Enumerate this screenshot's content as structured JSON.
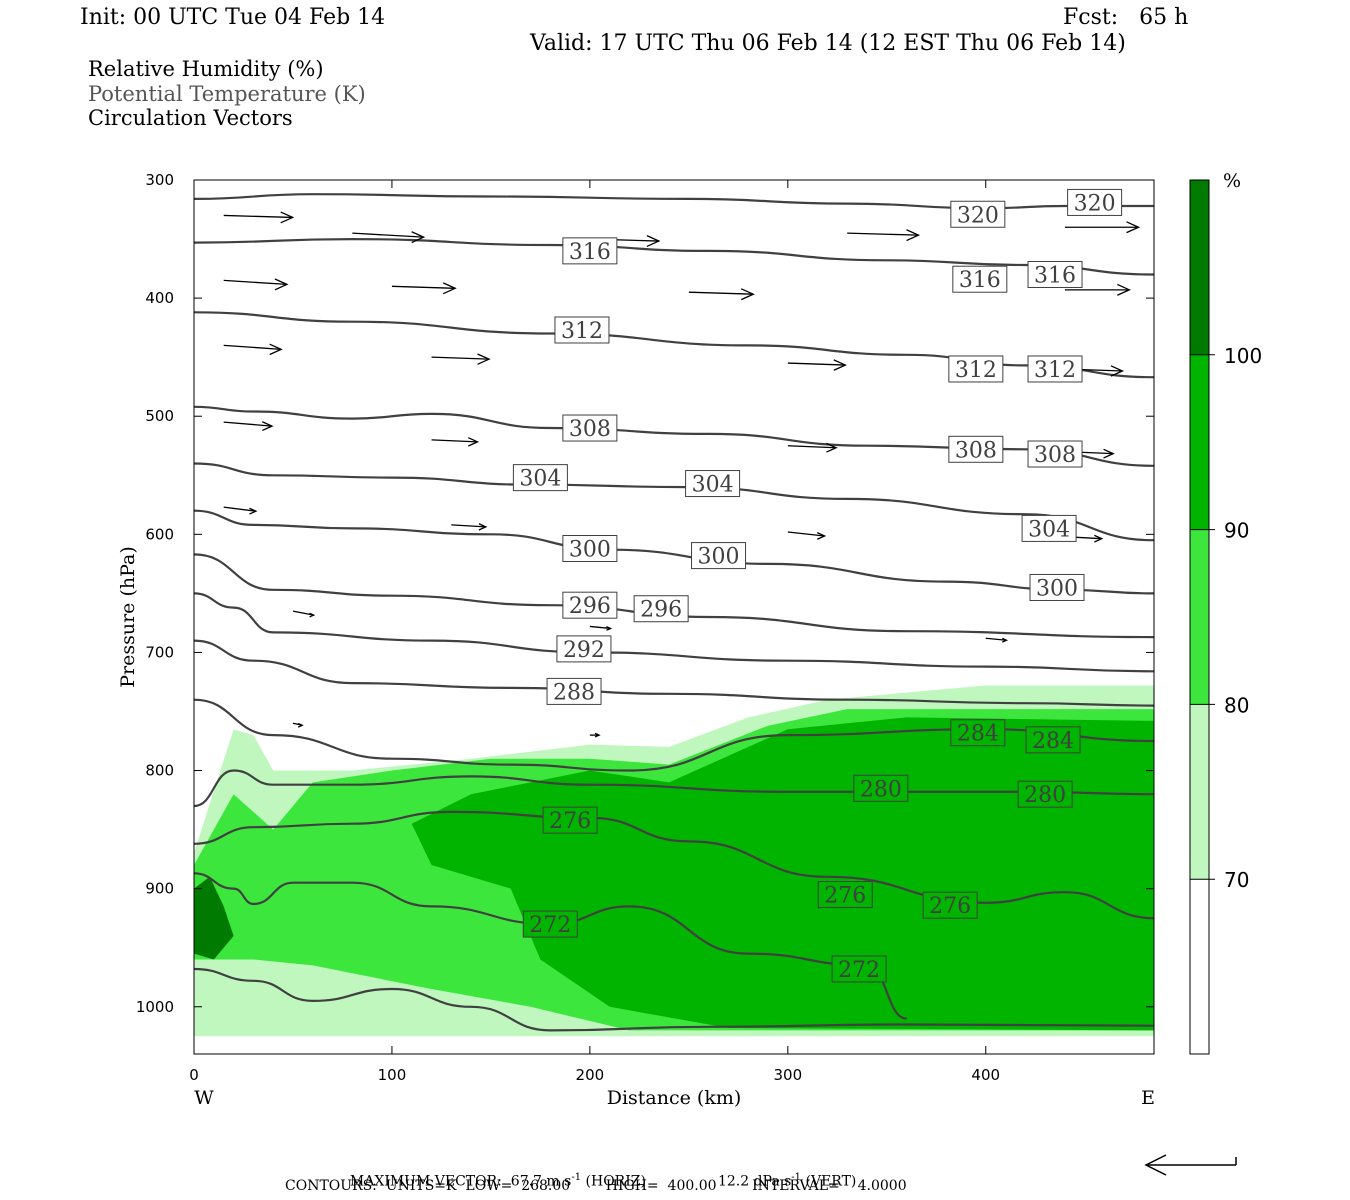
{
  "header": {
    "init": "Init: 00 UTC Tue 04 Feb 14",
    "fcst": "Fcst:   65 h",
    "valid": "Valid: 17 UTC Thu 06 Feb 14 (12 EST Thu 06 Feb 14)"
  },
  "legend_lines": [
    {
      "text": "Relative Humidity (%)",
      "color": "#000000"
    },
    {
      "text": "Potential Temperature (K)",
      "color": "#555555"
    },
    {
      "text": "Circulation Vectors",
      "color": "#000000"
    }
  ],
  "chart_data": {
    "type": "heatmap",
    "description_fields": "cross-section: RH shading, potential temperature contours, circulation vectors",
    "xlabel": "Distance (km)",
    "ylabel": "Pressure (hPa)",
    "xlim": [
      0,
      485
    ],
    "ylim": [
      1040,
      300
    ],
    "y_inverted": true,
    "x_ticks": [
      0,
      100,
      200,
      300,
      400
    ],
    "y_ticks": [
      300,
      400,
      500,
      600,
      700,
      800,
      900,
      1000
    ],
    "x_end_labels": {
      "left": "W",
      "right": "E"
    },
    "colorbar": {
      "unit": "%",
      "levels": [
        70,
        80,
        90,
        100
      ],
      "colors": [
        "#ffffff",
        "#bff7bf",
        "#3de63d",
        "#00b400",
        "#007a00"
      ]
    },
    "theta_contours": [
      {
        "value": 320,
        "points": [
          [
            0,
            316
          ],
          [
            60,
            312
          ],
          [
            150,
            314
          ],
          [
            250,
            316
          ],
          [
            330,
            320
          ],
          [
            400,
            324
          ],
          [
            440,
            322
          ],
          [
            485,
            322
          ]
        ]
      },
      {
        "value": 316,
        "points": [
          [
            0,
            353
          ],
          [
            80,
            350
          ],
          [
            180,
            355
          ],
          [
            260,
            360
          ],
          [
            350,
            368
          ],
          [
            420,
            372
          ],
          [
            485,
            380
          ]
        ]
      },
      {
        "value": 312,
        "points": [
          [
            0,
            412
          ],
          [
            80,
            420
          ],
          [
            180,
            430
          ],
          [
            280,
            440
          ],
          [
            360,
            448
          ],
          [
            420,
            457
          ],
          [
            485,
            467
          ]
        ]
      },
      {
        "value": 308,
        "points": [
          [
            0,
            492
          ],
          [
            30,
            496
          ],
          [
            80,
            502
          ],
          [
            120,
            498
          ],
          [
            180,
            510
          ],
          [
            260,
            515
          ],
          [
            340,
            525
          ],
          [
            420,
            528
          ],
          [
            485,
            542
          ]
        ]
      },
      {
        "value": 304,
        "points": [
          [
            0,
            540
          ],
          [
            40,
            550
          ],
          [
            100,
            552
          ],
          [
            170,
            558
          ],
          [
            250,
            560
          ],
          [
            330,
            570
          ],
          [
            420,
            583
          ],
          [
            485,
            605
          ]
        ]
      },
      {
        "value": 300,
        "points": [
          [
            0,
            580
          ],
          [
            30,
            592
          ],
          [
            80,
            595
          ],
          [
            150,
            600
          ],
          [
            210,
            613
          ],
          [
            290,
            625
          ],
          [
            380,
            640
          ],
          [
            440,
            647
          ],
          [
            485,
            650
          ]
        ]
      },
      {
        "value": 296,
        "points": [
          [
            0,
            617
          ],
          [
            40,
            647
          ],
          [
            100,
            652
          ],
          [
            180,
            660
          ],
          [
            260,
            670
          ],
          [
            360,
            682
          ],
          [
            485,
            687
          ]
        ]
      },
      {
        "value": 292,
        "points": [
          [
            0,
            650
          ],
          [
            20,
            662
          ],
          [
            40,
            683
          ],
          [
            120,
            690
          ],
          [
            200,
            700
          ],
          [
            300,
            707
          ],
          [
            400,
            712
          ],
          [
            485,
            716
          ]
        ]
      },
      {
        "value": 288,
        "points": [
          [
            0,
            690
          ],
          [
            30,
            707
          ],
          [
            80,
            726
          ],
          [
            160,
            730
          ],
          [
            240,
            735
          ],
          [
            330,
            740
          ],
          [
            420,
            743
          ],
          [
            485,
            745
          ]
        ]
      },
      {
        "value": 284,
        "points": [
          [
            0,
            740
          ],
          [
            40,
            770
          ],
          [
            100,
            790
          ],
          [
            160,
            795
          ],
          [
            220,
            800
          ],
          [
            300,
            770
          ],
          [
            400,
            765
          ],
          [
            485,
            775
          ]
        ]
      },
      {
        "value": 280,
        "points": [
          [
            0,
            830
          ],
          [
            20,
            800
          ],
          [
            40,
            812
          ],
          [
            80,
            812
          ],
          [
            140,
            805
          ],
          [
            200,
            812
          ],
          [
            300,
            818
          ],
          [
            420,
            818
          ],
          [
            485,
            820
          ]
        ]
      },
      {
        "value": 276,
        "points": [
          [
            0,
            862
          ],
          [
            30,
            848
          ],
          [
            80,
            845
          ],
          [
            130,
            835
          ],
          [
            200,
            840
          ],
          [
            250,
            860
          ],
          [
            320,
            890
          ],
          [
            400,
            912
          ],
          [
            440,
            903
          ],
          [
            485,
            925
          ]
        ]
      },
      {
        "value": 272,
        "points": [
          [
            0,
            887
          ],
          [
            20,
            900
          ],
          [
            30,
            913
          ],
          [
            50,
            895
          ],
          [
            80,
            895
          ],
          [
            120,
            915
          ],
          [
            180,
            930
          ],
          [
            220,
            915
          ],
          [
            280,
            955
          ],
          [
            340,
            965
          ],
          [
            360,
            1010
          ]
        ]
      },
      {
        "value": 268,
        "points": [
          [
            0,
            968
          ],
          [
            30,
            978
          ],
          [
            60,
            995
          ],
          [
            100,
            985
          ],
          [
            140,
            1000
          ],
          [
            180,
            1020
          ],
          [
            260,
            1017
          ],
          [
            360,
            1015
          ],
          [
            485,
            1016
          ]
        ]
      }
    ],
    "contour_labels": [
      {
        "value": 320,
        "x": 396,
        "p": 329
      },
      {
        "value": 320,
        "x": 455,
        "p": 319
      },
      {
        "value": 316,
        "x": 200,
        "p": 360
      },
      {
        "value": 316,
        "x": 397,
        "p": 384
      },
      {
        "value": 316,
        "x": 435,
        "p": 380
      },
      {
        "value": 312,
        "x": 196,
        "p": 427
      },
      {
        "value": 312,
        "x": 395,
        "p": 460
      },
      {
        "value": 312,
        "x": 435,
        "p": 460
      },
      {
        "value": 308,
        "x": 200,
        "p": 510
      },
      {
        "value": 308,
        "x": 395,
        "p": 528
      },
      {
        "value": 308,
        "x": 435,
        "p": 532
      },
      {
        "value": 304,
        "x": 175,
        "p": 552
      },
      {
        "value": 304,
        "x": 262,
        "p": 557
      },
      {
        "value": 304,
        "x": 432,
        "p": 595
      },
      {
        "value": 300,
        "x": 200,
        "p": 612
      },
      {
        "value": 300,
        "x": 265,
        "p": 618
      },
      {
        "value": 300,
        "x": 436,
        "p": 645
      },
      {
        "value": 296,
        "x": 200,
        "p": 660
      },
      {
        "value": 296,
        "x": 236,
        "p": 663
      },
      {
        "value": 292,
        "x": 197,
        "p": 697
      },
      {
        "value": 288,
        "x": 192,
        "p": 733
      },
      {
        "value": 284,
        "x": 396,
        "p": 768
      },
      {
        "value": 284,
        "x": 434,
        "p": 774
      },
      {
        "value": 280,
        "x": 347,
        "p": 815
      },
      {
        "value": 280,
        "x": 430,
        "p": 820
      },
      {
        "value": 276,
        "x": 190,
        "p": 842
      },
      {
        "value": 276,
        "x": 329,
        "p": 905
      },
      {
        "value": 276,
        "x": 382,
        "p": 914
      },
      {
        "value": 272,
        "x": 180,
        "p": 930
      },
      {
        "value": 272,
        "x": 336,
        "p": 968
      }
    ],
    "rh_regions": [
      {
        "level": 70,
        "points": [
          [
            0,
            870
          ],
          [
            20,
            765
          ],
          [
            30,
            770
          ],
          [
            40,
            800
          ],
          [
            80,
            800
          ],
          [
            140,
            790
          ],
          [
            200,
            778
          ],
          [
            240,
            780
          ],
          [
            280,
            755
          ],
          [
            320,
            740
          ],
          [
            400,
            728
          ],
          [
            485,
            728
          ],
          [
            485,
            1025
          ],
          [
            0,
            1025
          ]
        ]
      },
      {
        "level": 80,
        "points": [
          [
            0,
            880
          ],
          [
            20,
            820
          ],
          [
            40,
            850
          ],
          [
            60,
            810
          ],
          [
            100,
            800
          ],
          [
            150,
            790
          ],
          [
            200,
            790
          ],
          [
            240,
            795
          ],
          [
            290,
            762
          ],
          [
            330,
            748
          ],
          [
            485,
            748
          ],
          [
            485,
            1020
          ],
          [
            220,
            1020
          ],
          [
            170,
            1000
          ],
          [
            120,
            985
          ],
          [
            60,
            965
          ],
          [
            30,
            960
          ],
          [
            0,
            960
          ]
        ]
      },
      {
        "level": 90,
        "points": [
          [
            110,
            845
          ],
          [
            140,
            820
          ],
          [
            200,
            800
          ],
          [
            240,
            810
          ],
          [
            300,
            765
          ],
          [
            360,
            755
          ],
          [
            485,
            758
          ],
          [
            485,
            1020
          ],
          [
            270,
            1018
          ],
          [
            210,
            1000
          ],
          [
            175,
            960
          ],
          [
            160,
            900
          ],
          [
            120,
            880
          ]
        ]
      },
      {
        "level": 100,
        "points": [
          [
            0,
            900
          ],
          [
            8,
            890
          ],
          [
            15,
            915
          ],
          [
            20,
            940
          ],
          [
            10,
            960
          ],
          [
            0,
            955
          ]
        ]
      }
    ],
    "vectors": {
      "note": "approximate wind direction (u, w) sampled on grid",
      "max_horizontal": "67.7 m s-1",
      "max_vertical": "12.2 dPa s-1",
      "samples": [
        {
          "x": 15,
          "p": 330,
          "u": 60,
          "w": 1
        },
        {
          "x": 80,
          "p": 345,
          "u": 62,
          "w": 2
        },
        {
          "x": 200,
          "p": 350,
          "u": 60,
          "w": 1
        },
        {
          "x": 330,
          "p": 345,
          "u": 62,
          "w": 1
        },
        {
          "x": 440,
          "p": 340,
          "u": 64,
          "w": 0
        },
        {
          "x": 15,
          "p": 385,
          "u": 55,
          "w": 2
        },
        {
          "x": 100,
          "p": 390,
          "u": 55,
          "w": 1
        },
        {
          "x": 250,
          "p": 395,
          "u": 56,
          "w": 1
        },
        {
          "x": 440,
          "p": 393,
          "u": 56,
          "w": 0
        },
        {
          "x": 15,
          "p": 440,
          "u": 50,
          "w": 2
        },
        {
          "x": 120,
          "p": 450,
          "u": 50,
          "w": 1
        },
        {
          "x": 300,
          "p": 455,
          "u": 50,
          "w": 1
        },
        {
          "x": 440,
          "p": 460,
          "u": 50,
          "w": 1
        },
        {
          "x": 15,
          "p": 505,
          "u": 42,
          "w": 2
        },
        {
          "x": 120,
          "p": 520,
          "u": 40,
          "w": 1
        },
        {
          "x": 300,
          "p": 525,
          "u": 42,
          "w": 1
        },
        {
          "x": 440,
          "p": 530,
          "u": 42,
          "w": 1
        },
        {
          "x": 15,
          "p": 577,
          "u": 28,
          "w": 2
        },
        {
          "x": 130,
          "p": 592,
          "u": 30,
          "w": 1
        },
        {
          "x": 300,
          "p": 598,
          "u": 32,
          "w": 2
        },
        {
          "x": 440,
          "p": 602,
          "u": 32,
          "w": 1
        },
        {
          "x": 50,
          "p": 665,
          "u": 18,
          "w": 2
        },
        {
          "x": 200,
          "p": 678,
          "u": 18,
          "w": 1
        },
        {
          "x": 400,
          "p": 688,
          "u": 18,
          "w": 1
        },
        {
          "x": 50,
          "p": 760,
          "u": 8,
          "w": 1
        },
        {
          "x": 200,
          "p": 770,
          "u": 8,
          "w": 0
        },
        {
          "x": 400,
          "p": 773,
          "u": 8,
          "w": 0
        }
      ]
    }
  },
  "footer": {
    "max_vector_label": "MAXIMUM VECTOR:  67.7 m s",
    "horiz_label": " (HORIZ)",
    "vert_value": "12.2 dPa s",
    "vert_label": " (VERT)",
    "neg_one": "-1",
    "contours": "CONTOURS:  UNITS=K  LOW=  268.00        HIGH=  400.00        INTERVAL=    4.0000"
  }
}
